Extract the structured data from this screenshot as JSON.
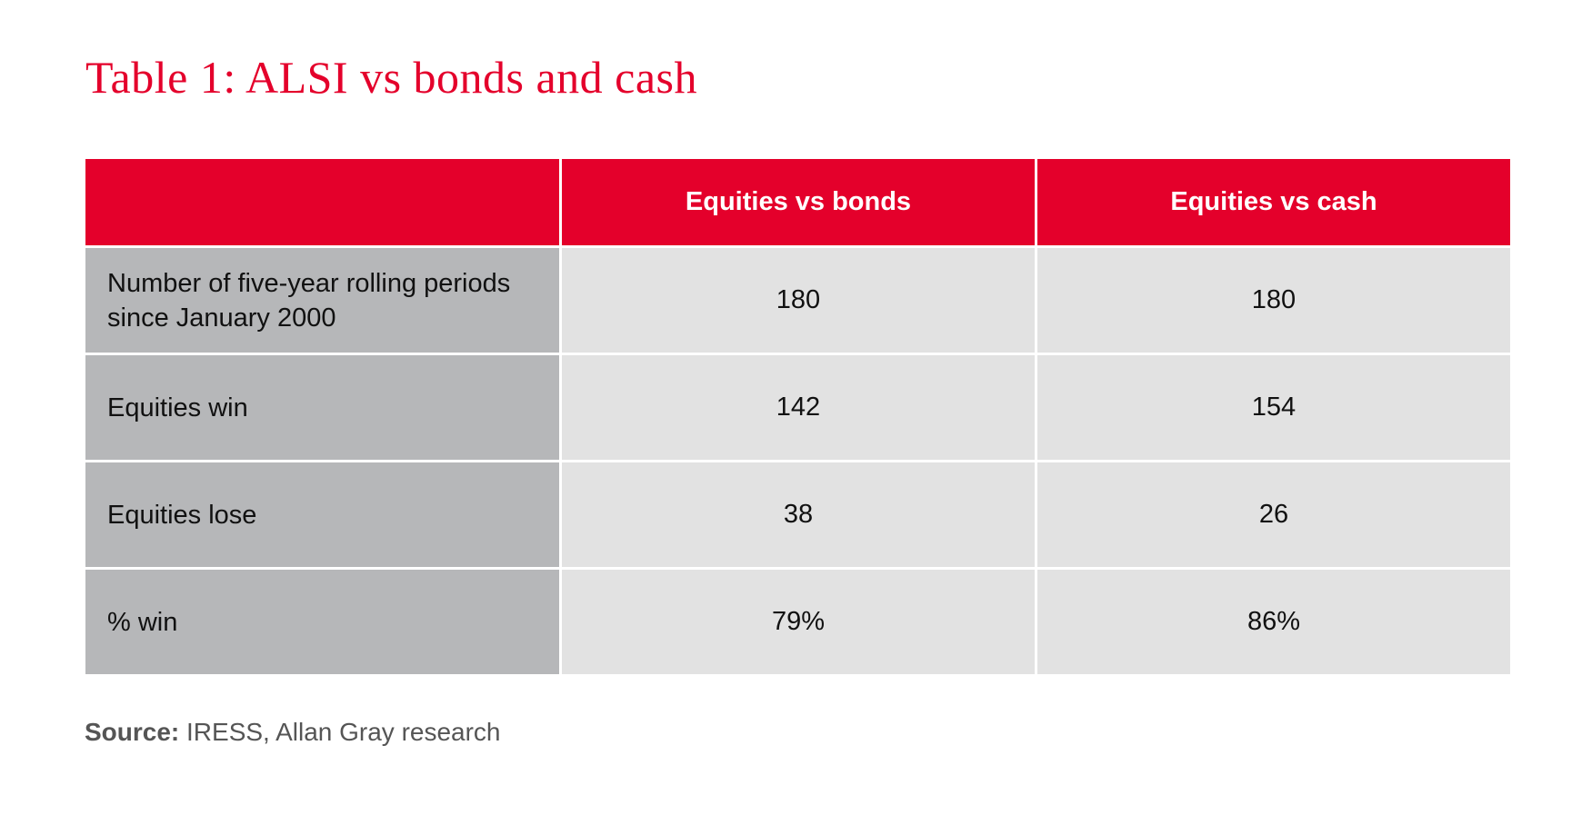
{
  "title": "Table 1: ALSI vs bonds and cash",
  "table": {
    "columns": [
      "Equities vs bonds",
      "Equities vs cash"
    ],
    "rows": [
      [
        "Number of five-year rolling periods since January 2000",
        "180",
        "180"
      ],
      [
        "Equities win",
        "142",
        "154"
      ],
      [
        "Equities lose",
        "38",
        "26"
      ],
      [
        "% win",
        "79%",
        "86%"
      ]
    ]
  },
  "source": {
    "label": "Source:",
    "text": "IRESS, Allan Gray research"
  }
}
